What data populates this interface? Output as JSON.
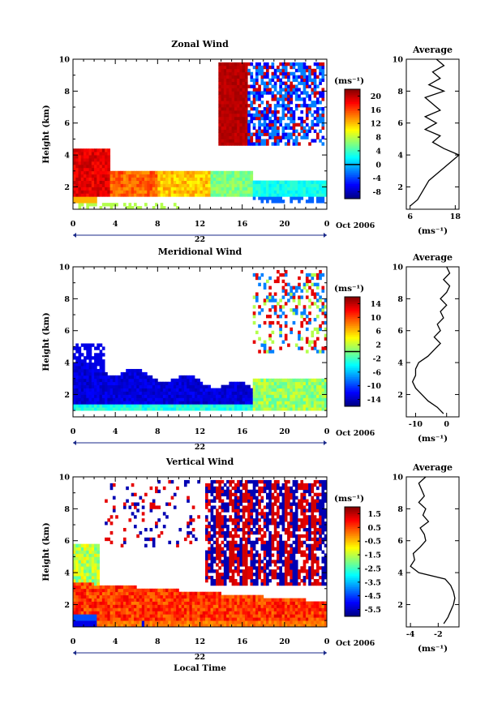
{
  "chart_data": [
    {
      "type": "heatmap",
      "title": "Zonal Wind",
      "ylabel": "Height (km)",
      "x_ticks": [
        "0",
        "4",
        "8",
        "12",
        "16",
        "20",
        "0"
      ],
      "y_ticks": [
        "2",
        "4",
        "6",
        "8",
        "10"
      ],
      "date_label": "22",
      "date_suffix": "Oct 2006",
      "colorbar": {
        "unit": "(ms⁻¹)",
        "ticks": [
          "20",
          "16",
          "12",
          "8",
          "4",
          "0",
          "-4",
          "-8"
        ],
        "range": [
          -10,
          22
        ],
        "zero_line": 0
      },
      "xlim": [
        0,
        24
      ],
      "ylim": [
        0.6,
        10
      ],
      "profile": {
        "title": "Average",
        "xlabel": "(ms⁻¹)",
        "x_ticks": [
          "6",
          "18"
        ],
        "y_ticks": [
          "2",
          "4",
          "6",
          "8",
          "10"
        ],
        "xlim": [
          5,
          19
        ],
        "heights": [
          0.8,
          1.2,
          1.6,
          2.0,
          2.4,
          2.8,
          3.2,
          3.6,
          4.0,
          4.4,
          4.8,
          5.2,
          5.6,
          6.0,
          6.4,
          6.8,
          7.2,
          7.6,
          8.0,
          8.4,
          8.8,
          9.2,
          9.6,
          10.0
        ],
        "values": [
          6,
          8,
          9,
          10,
          11,
          13,
          15,
          17,
          19,
          15,
          12,
          14,
          10,
          13,
          10,
          14,
          12,
          10,
          15,
          11,
          14,
          12,
          15,
          13
        ]
      }
    },
    {
      "type": "heatmap",
      "title": "Meridional Wind",
      "ylabel": "Height (km)",
      "x_ticks": [
        "0",
        "4",
        "8",
        "12",
        "16",
        "20",
        "0"
      ],
      "y_ticks": [
        "2",
        "4",
        "6",
        "8",
        "10"
      ],
      "date_label": "22",
      "date_suffix": "Oct 2006",
      "colorbar": {
        "unit": "(ms⁻¹)",
        "ticks": [
          "14",
          "10",
          "6",
          "2",
          "-2",
          "-6",
          "-10",
          "-14"
        ],
        "range": [
          -16,
          16
        ],
        "zero_line": 0
      },
      "xlim": [
        0,
        24
      ],
      "ylim": [
        0.6,
        10
      ],
      "profile": {
        "title": "Average",
        "xlabel": "(ms⁻¹)",
        "x_ticks": [
          "-10",
          "0"
        ],
        "y_ticks": [
          "2",
          "4",
          "6",
          "8",
          "10"
        ],
        "xlim": [
          -13,
          4
        ],
        "heights": [
          0.8,
          1.2,
          1.6,
          2.0,
          2.4,
          2.8,
          3.2,
          3.6,
          4.0,
          4.4,
          4.8,
          5.2,
          5.6,
          6.0,
          6.4,
          6.8,
          7.2,
          7.6,
          8.0,
          8.4,
          8.8,
          9.2,
          9.6,
          10.0
        ],
        "values": [
          -1,
          -3,
          -6,
          -8,
          -10,
          -11,
          -10,
          -10,
          -9,
          -6,
          -4,
          -2,
          -4,
          -2,
          -3,
          -1,
          -2,
          0,
          -2,
          0,
          1,
          -1,
          1,
          0
        ]
      }
    },
    {
      "type": "heatmap",
      "title": "Vertical Wind",
      "ylabel": "Height (km)",
      "xlabel": "Local Time",
      "x_ticks": [
        "0",
        "4",
        "8",
        "12",
        "16",
        "20",
        "0"
      ],
      "y_ticks": [
        "2",
        "4",
        "6",
        "8",
        "10"
      ],
      "date_label": "22",
      "date_suffix": "Oct 2006",
      "colorbar": {
        "unit": "(ms⁻¹)",
        "ticks": [
          "1.5",
          "0.5",
          "-0.5",
          "-1.5",
          "-2.5",
          "-3.5",
          "-4.5",
          "-5.5"
        ],
        "range": [
          -6,
          2
        ]
      },
      "xlim": [
        0,
        24
      ],
      "ylim": [
        0.6,
        10
      ],
      "profile": {
        "title": "Average",
        "xlabel": "(ms⁻¹)",
        "x_ticks": [
          "-4",
          "-2"
        ],
        "y_ticks": [
          "2",
          "4",
          "6",
          "8",
          "10"
        ],
        "xlim": [
          -4.3,
          -0.5
        ],
        "heights": [
          0.8,
          1.2,
          1.6,
          2.0,
          2.4,
          2.8,
          3.2,
          3.6,
          4.0,
          4.4,
          4.8,
          5.2,
          5.6,
          6.0,
          6.4,
          6.8,
          7.2,
          7.6,
          8.0,
          8.4,
          8.8,
          9.2,
          9.6,
          10.0
        ],
        "values": [
          -1.6,
          -1.3,
          -1.1,
          -0.9,
          -0.8,
          -0.9,
          -1.1,
          -1.5,
          -3.4,
          -4.0,
          -3.7,
          -3.8,
          -3.3,
          -2.9,
          -3.0,
          -3.3,
          -2.7,
          -3.1,
          -2.9,
          -3.4,
          -3.0,
          -3.2,
          -3.4,
          -2.9
        ]
      }
    }
  ]
}
